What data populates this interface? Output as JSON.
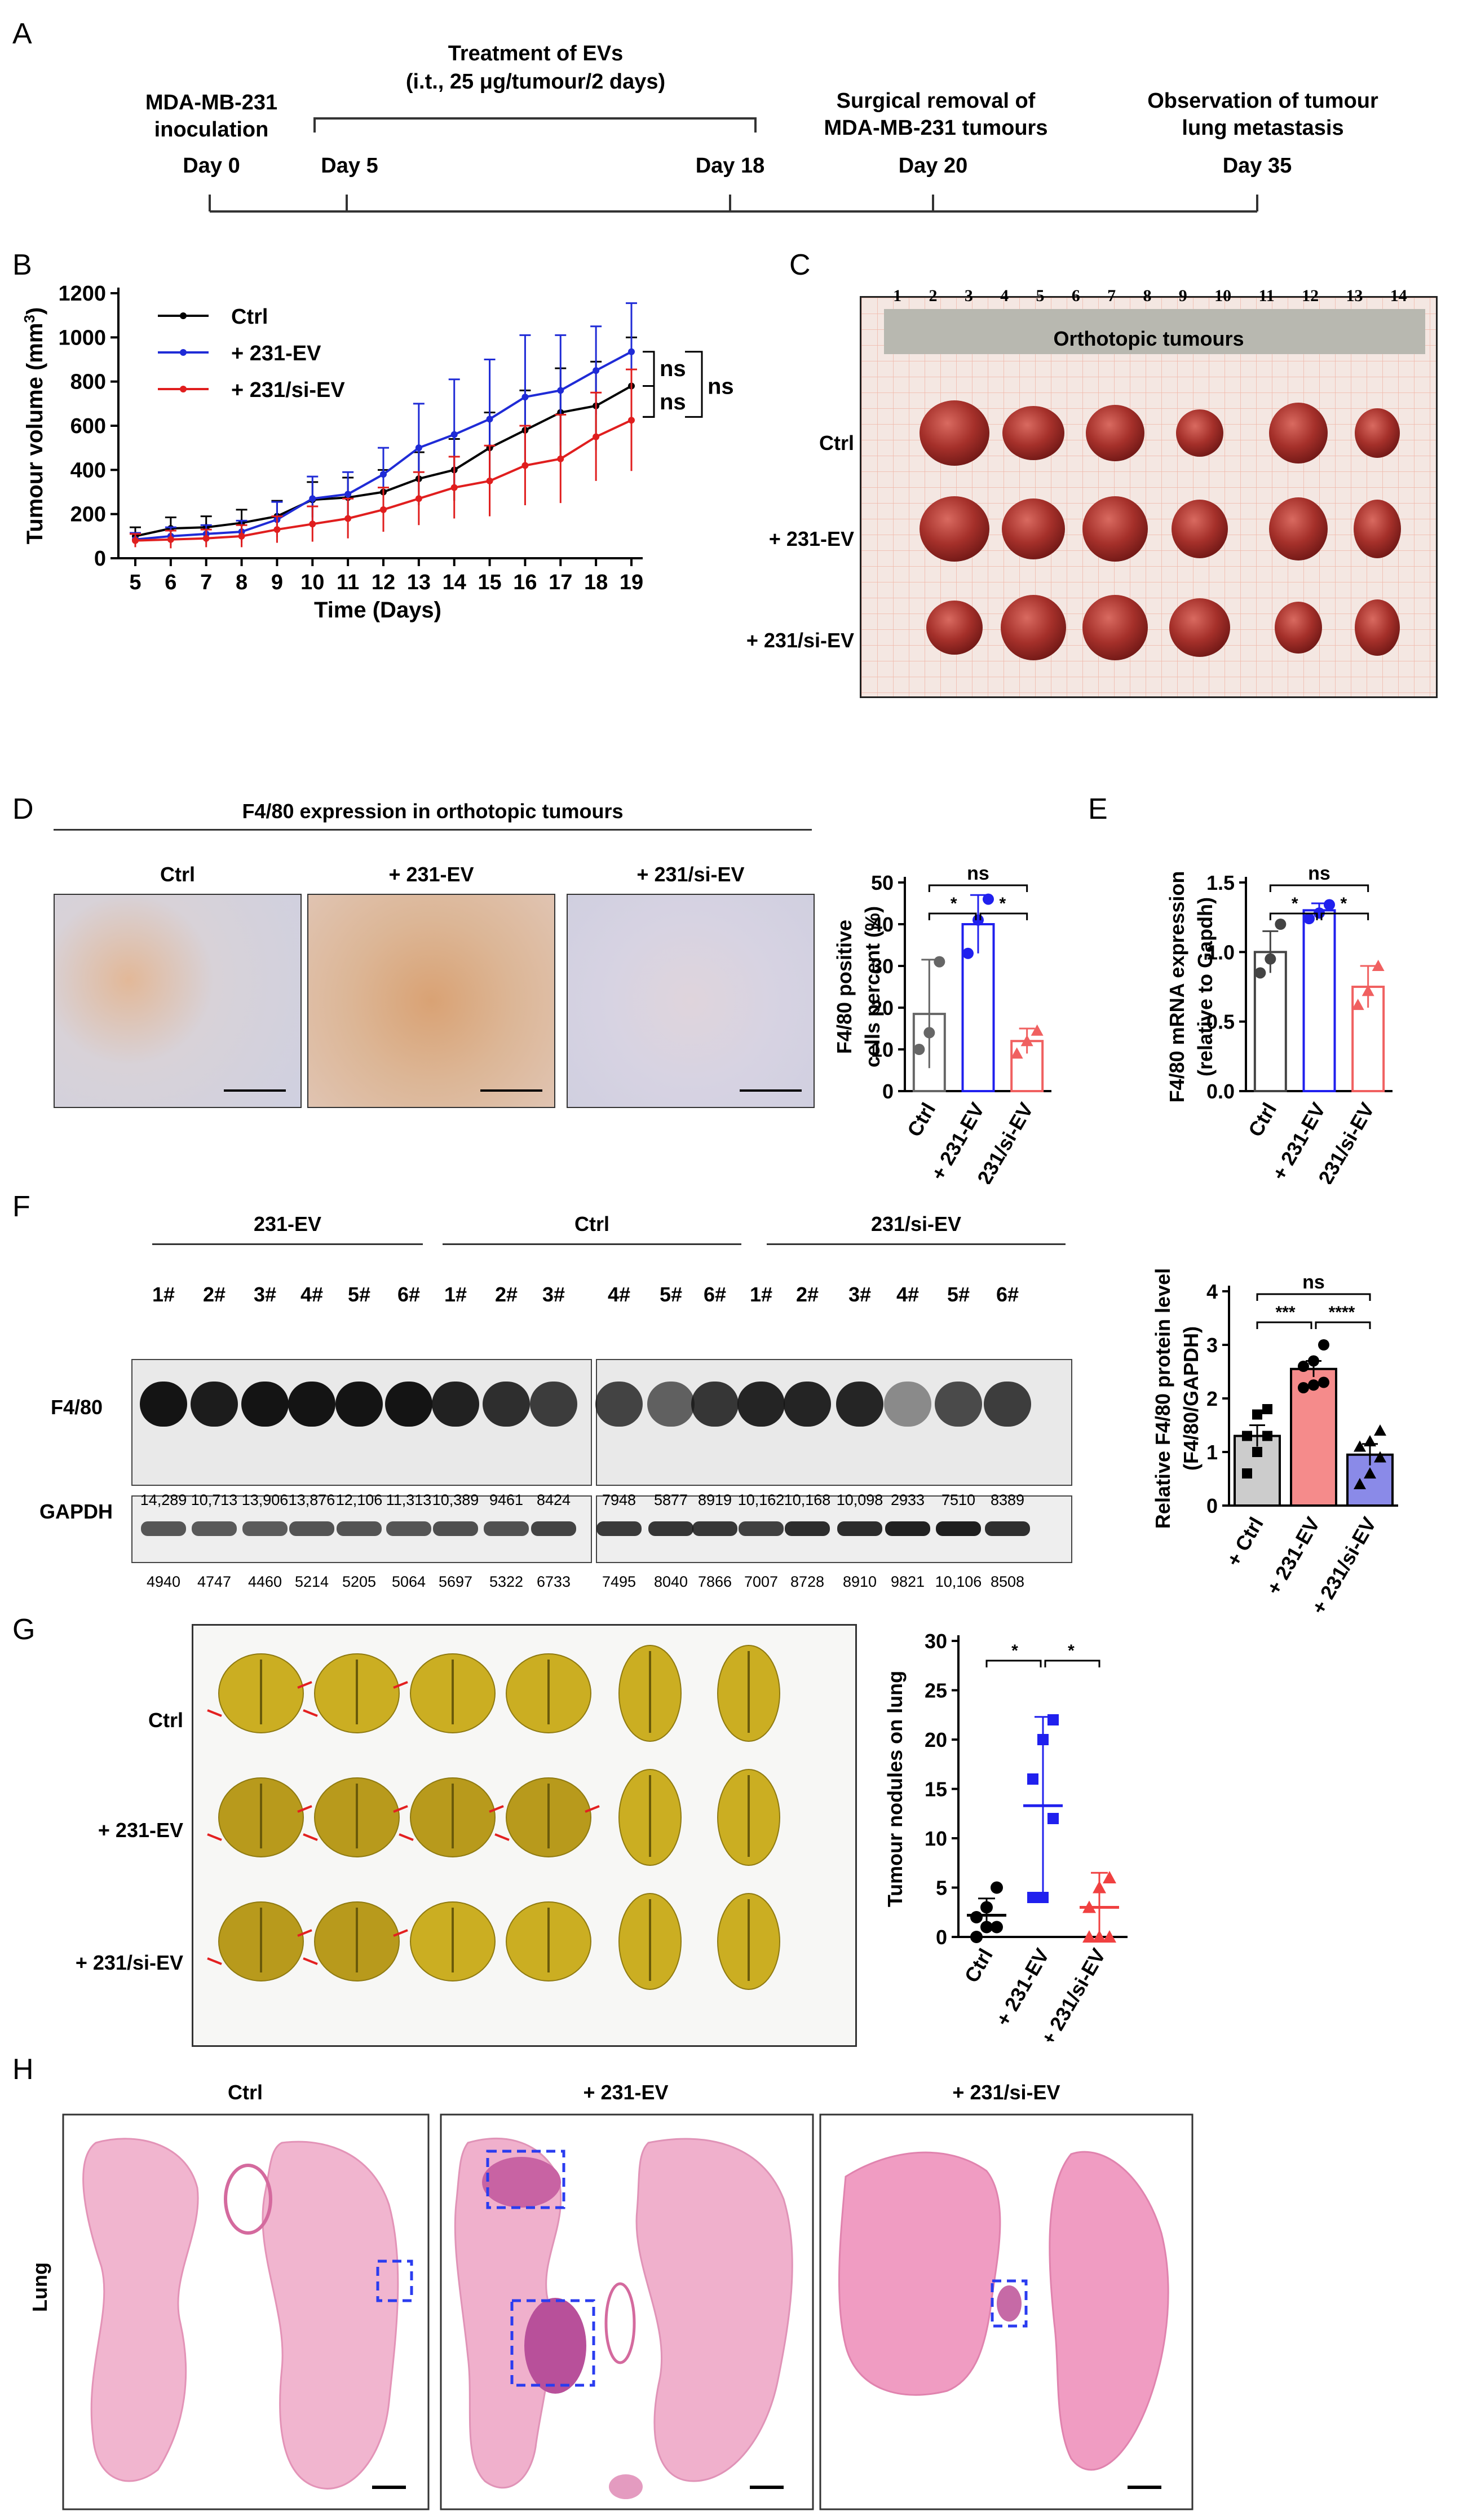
{
  "letters": {
    "A": "A",
    "B": "B",
    "C": "C",
    "D": "D",
    "E": "E",
    "F": "F",
    "G": "G",
    "H": "H"
  },
  "timeline": {
    "events": [
      {
        "title": "MDA-MB-231 inoculation",
        "day": "Day 0",
        "day_num": 0
      },
      {
        "title": "",
        "day": "Day 5",
        "day_num": 5
      },
      {
        "title": "",
        "day": "Day 18",
        "day_num": 18
      },
      {
        "title": "Surgical removal of MDA-MB-231 tumours",
        "day": "Day 20",
        "day_num": 20
      },
      {
        "title": "Observation of tumour lung metastasis",
        "day": "Day 35",
        "day_num": 35
      }
    ],
    "treatment_line1": "Treatment of EVs",
    "treatment_line2": "(i.t., 25 μg/tumour/2 days)",
    "title_lines": {
      "inoc1": "MDA-MB-231",
      "inoc2": "inoculation",
      "surg1": "Surgical removal of",
      "surg2": "MDA-MB-231 tumours",
      "obs1": "Observation of tumour",
      "obs2": "lung metastasis"
    }
  },
  "chart_data": [
    {
      "id": "B",
      "type": "line",
      "xlabel": "Time (Days)",
      "ylabel": "Tumour volume (mm³)",
      "ylabel_base": "Tumour volume (mm",
      "ylabel_sup": "3",
      "ylabel_end": ")",
      "x": [
        5,
        6,
        7,
        8,
        9,
        10,
        11,
        12,
        13,
        14,
        15,
        16,
        17,
        18,
        19
      ],
      "yticks": [
        0,
        200,
        400,
        600,
        800,
        1000,
        1200
      ],
      "ylim": [
        0,
        1200
      ],
      "series": [
        {
          "name": "Ctrl",
          "color": "#000000",
          "values": [
            100,
            135,
            140,
            160,
            190,
            265,
            275,
            300,
            360,
            400,
            500,
            580,
            660,
            690,
            780
          ],
          "err": [
            40,
            50,
            50,
            60,
            70,
            80,
            90,
            100,
            120,
            140,
            160,
            180,
            200,
            200,
            220
          ]
        },
        {
          "name": "+ 231-EV",
          "color": "#1f2bd6",
          "values": [
            85,
            100,
            110,
            120,
            175,
            270,
            290,
            380,
            500,
            560,
            630,
            730,
            760,
            850,
            935
          ],
          "err": [
            30,
            40,
            40,
            50,
            80,
            100,
            100,
            120,
            200,
            250,
            270,
            280,
            250,
            200,
            220
          ]
        },
        {
          "name": "+ 231/si-EV",
          "color": "#e01e1e",
          "values": [
            80,
            85,
            90,
            100,
            130,
            155,
            180,
            220,
            270,
            320,
            350,
            420,
            450,
            550,
            625
          ],
          "err": [
            30,
            40,
            40,
            50,
            60,
            80,
            90,
            100,
            120,
            140,
            160,
            180,
            200,
            200,
            230
          ]
        }
      ],
      "annotations": [
        "ns",
        "ns",
        "ns"
      ]
    },
    {
      "id": "D",
      "type": "bar",
      "ylabel_line1": "F4/80 positive",
      "ylabel_line2": "cells percent (%)",
      "categories": [
        "Ctrl",
        "+ 231-EV",
        "+ 231/si-EV"
      ],
      "values": [
        18.5,
        40.0,
        12.0
      ],
      "err": [
        13,
        7,
        3
      ],
      "points": [
        [
          10,
          14,
          31
        ],
        [
          33,
          41,
          46
        ],
        [
          9,
          12,
          14.5
        ]
      ],
      "colors": [
        "#666666",
        "#2020ee",
        "#f06060"
      ],
      "yticks": [
        0,
        10,
        20,
        30,
        40,
        50
      ],
      "ylim": [
        0,
        50
      ],
      "sig": [
        "*",
        "*",
        "ns"
      ]
    },
    {
      "id": "E",
      "type": "bar",
      "ylabel_line1": "F4/80 mRNA expression",
      "ylabel_line2": "(relative to Gapdh)",
      "categories": [
        "Ctrl",
        "+ 231-EV",
        "+ 231/si-EV"
      ],
      "values": [
        1.0,
        1.3,
        0.75
      ],
      "err": [
        0.15,
        0.05,
        0.15
      ],
      "points": [
        [
          0.85,
          0.95,
          1.2
        ],
        [
          1.24,
          1.28,
          1.34
        ],
        [
          0.62,
          0.72,
          0.9
        ]
      ],
      "colors": [
        "#444444",
        "#2020ee",
        "#f06060"
      ],
      "yticks": [
        0.0,
        0.5,
        1.0,
        1.5
      ],
      "ylim": [
        0,
        1.5
      ],
      "sig": [
        "*",
        "*",
        "ns"
      ]
    },
    {
      "id": "F",
      "type": "bar",
      "ylabel_line1": "Relative F4/80 protein level",
      "ylabel_line2": "(F4/80/GAPDH)",
      "categories": [
        "+ Ctrl",
        "+ 231-EV",
        "+ 231/si-EV"
      ],
      "values": [
        1.3,
        2.55,
        0.95
      ],
      "err": [
        0.2,
        0.15,
        0.2
      ],
      "points": [
        [
          0.6,
          1.0,
          1.3,
          1.3,
          1.7,
          1.8
        ],
        [
          2.2,
          2.25,
          2.3,
          2.6,
          2.7,
          3.0
        ],
        [
          0.4,
          0.6,
          0.9,
          1.1,
          1.2,
          1.4
        ]
      ],
      "colors": [
        "#cccccc",
        "#f58b8b",
        "#8a8ae8"
      ],
      "yticks": [
        0,
        1,
        2,
        3,
        4
      ],
      "ylim": [
        0,
        4
      ],
      "sig": [
        "***",
        "****",
        "ns"
      ]
    },
    {
      "id": "G",
      "type": "scatter",
      "ylabel": "Tumour nodules on lung",
      "categories": [
        "Ctrl",
        "+ 231-EV",
        "+ 231/si-EV"
      ],
      "means": [
        2.2,
        13.3,
        3.0
      ],
      "err": [
        1.7,
        9.0,
        3.5
      ],
      "points": [
        [
          0,
          1,
          1,
          2,
          3,
          5
        ],
        [
          4,
          4,
          12,
          16,
          20,
          22
        ],
        [
          0,
          0,
          0,
          3,
          5,
          6
        ]
      ],
      "colors": [
        "#000000",
        "#2020ee",
        "#f04040"
      ],
      "yticks": [
        0,
        5,
        10,
        15,
        20,
        25,
        30
      ],
      "ylim": [
        0,
        30
      ],
      "sig": [
        "*",
        "*"
      ]
    }
  ],
  "panelC": {
    "title": "Orthotopic tumours",
    "rows": [
      "Ctrl",
      "+ 231-EV",
      "+ 231/si-EV"
    ],
    "ruler": [
      "1",
      "2",
      "3",
      "4",
      "5",
      "6",
      "7",
      "8",
      "9",
      "10",
      "11",
      "12",
      "13",
      "14"
    ]
  },
  "panelD": {
    "title": "F4/80 expression in orthotopic tumours",
    "labels": [
      "Ctrl",
      "+ 231-EV",
      "+ 231/si-EV"
    ]
  },
  "panelF": {
    "groups": [
      "231-EV",
      "Ctrl",
      "231/si-EV"
    ],
    "lanes": [
      "1#",
      "2#",
      "3#",
      "4#",
      "5#",
      "6#",
      "1#",
      "2#",
      "3#",
      "4#",
      "5#",
      "6#",
      "1#",
      "2#",
      "3#",
      "4#",
      "5#",
      "6#"
    ],
    "row1": "F4/80",
    "row2": "GAPDH",
    "f480_vals": [
      "14,289",
      "10,713",
      "13,906",
      "13,876",
      "12,106",
      "11,313",
      "10,389",
      "9461",
      "8424",
      "7948",
      "5877",
      "8919",
      "10,162",
      "10,168",
      "10,098",
      "2933",
      "7510",
      "8389"
    ],
    "gapdh_vals": [
      "4940",
      "4747",
      "4460",
      "5214",
      "5205",
      "5064",
      "5697",
      "5322",
      "6733",
      "7495",
      "8040",
      "7866",
      "7007",
      "8728",
      "8910",
      "9821",
      "10,106",
      "8508"
    ]
  },
  "panelG": {
    "rows": [
      "Ctrl",
      "+ 231-EV",
      "+ 231/si-EV"
    ]
  },
  "panelH": {
    "labels": [
      "Ctrl",
      "+ 231-EV",
      "+ 231/si-EV"
    ],
    "side": "Lung"
  }
}
